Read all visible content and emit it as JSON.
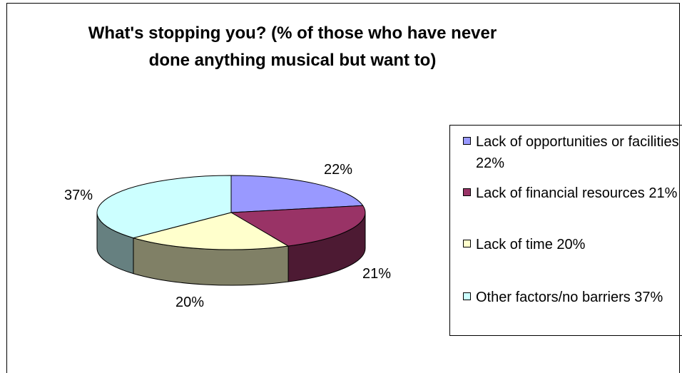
{
  "chart_data": {
    "type": "pie",
    "title": "What's stopping you? (% of those who have never done anything musical but want to)",
    "categories": [
      "Lack of opportunities or facilities 22%",
      "Lack of financial resources 21%",
      "Lack of time 20%",
      "Other factors/no barriers 37%"
    ],
    "values": [
      22,
      21,
      20,
      37
    ],
    "data_labels": [
      "22%",
      "21%",
      "20%",
      "37%"
    ],
    "colors": [
      "#9999ff",
      "#993366",
      "#ffffcc",
      "#ccffff"
    ],
    "side_colors": [
      "#4d4d80",
      "#4d1a33",
      "#808066",
      "#668080"
    ],
    "legend_position": "right",
    "three_d": true
  }
}
